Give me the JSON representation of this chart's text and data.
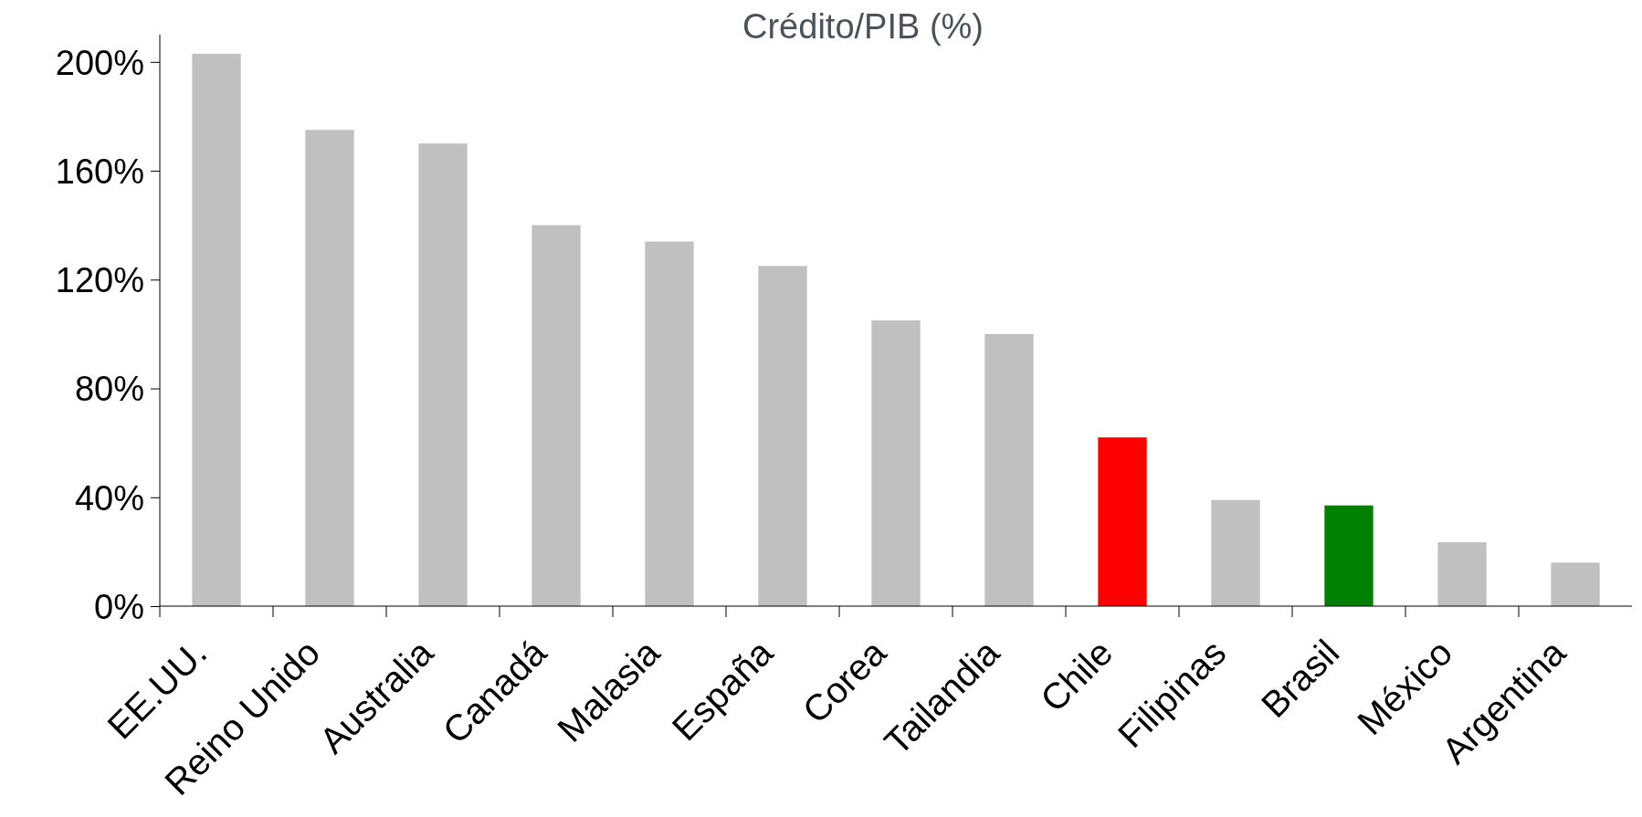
{
  "chart_data": {
    "type": "bar",
    "title": "Crédito/PIB (%)",
    "categories": [
      "EE.UU.",
      "Reino Unido",
      "Australia",
      "Canadá",
      "Malasia",
      "España",
      "Corea",
      "Tailandia",
      "Chile",
      "Filipinas",
      "Brasil",
      "México",
      "Argentina"
    ],
    "values": [
      203,
      175,
      170,
      140,
      134,
      125,
      105,
      100,
      62,
      39,
      37,
      23.5,
      16
    ],
    "colors": [
      "#c0c0c0",
      "#c0c0c0",
      "#c0c0c0",
      "#c0c0c0",
      "#c0c0c0",
      "#c0c0c0",
      "#c0c0c0",
      "#c0c0c0",
      "#ff0000",
      "#c0c0c0",
      "#008000",
      "#c0c0c0",
      "#c0c0c0"
    ],
    "ylim": [
      0,
      210
    ],
    "yticks": [
      {
        "value": 0,
        "label": "0%"
      },
      {
        "value": 40,
        "label": "40%"
      },
      {
        "value": 80,
        "label": "80%"
      },
      {
        "value": 120,
        "label": "120%"
      },
      {
        "value": 160,
        "label": "160%"
      },
      {
        "value": 200,
        "label": "200%"
      }
    ],
    "grid": false
  }
}
